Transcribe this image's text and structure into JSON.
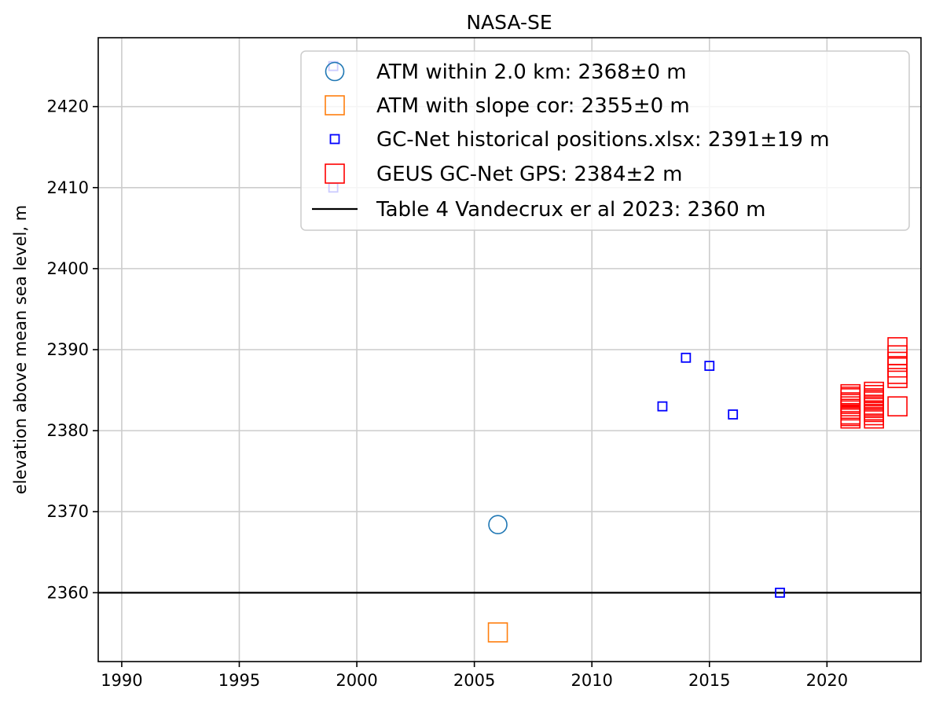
{
  "chart_data": {
    "type": "scatter",
    "title": "NASA-SE",
    "xlabel": "",
    "ylabel": "elevation above mean sea level, m",
    "xlim": [
      1989,
      2024
    ],
    "ylim": [
      2351.5,
      2428.5
    ],
    "xticks": [
      1990,
      1995,
      2000,
      2005,
      2010,
      2015,
      2020
    ],
    "yticks": [
      2360,
      2370,
      2380,
      2390,
      2400,
      2410,
      2420
    ],
    "grid": true,
    "legend_position": "top-right",
    "series": [
      {
        "name": "ATM within 2.0 km: 2368±0 m",
        "marker": "circle-large",
        "color": "#1f77b4",
        "x": [
          2006
        ],
        "y": [
          2368.4
        ]
      },
      {
        "name": "ATM with slope cor: 2355±0 m",
        "marker": "square-large",
        "color": "#ff7f0e",
        "x": [
          2006
        ],
        "y": [
          2355.1
        ]
      },
      {
        "name": "GC-Net historical positions.xlsx: 2391±19 m",
        "marker": "square-small",
        "color": "#0000ff",
        "x": [
          1999,
          1999,
          2013,
          2014,
          2015,
          2016,
          2018
        ],
        "y": [
          2425,
          2410,
          2383,
          2389,
          2388,
          2382,
          2360
        ]
      },
      {
        "name": "GEUS GC-Net GPS: 2384±2 m",
        "marker": "square-large",
        "color": "#ff0000",
        "x": [
          2021,
          2021,
          2021,
          2021,
          2021,
          2021,
          2021,
          2021,
          2021,
          2021,
          2021,
          2022,
          2022,
          2022,
          2022,
          2022,
          2022,
          2022,
          2022,
          2022,
          2022,
          2022,
          2022,
          2023,
          2023,
          2023,
          2023,
          2023,
          2023,
          2023
        ],
        "y": [
          2381.5,
          2382,
          2382.5,
          2383,
          2383.5,
          2384,
          2384.5,
          2381.8,
          2382.7,
          2383.3,
          2384.2,
          2381.5,
          2381.9,
          2382.3,
          2382.8,
          2383.2,
          2383.6,
          2384,
          2384.4,
          2384.8,
          2383,
          2382.5,
          2383.8,
          2390.3,
          2389.3,
          2388.5,
          2387.8,
          2387,
          2386.5,
          2383
        ]
      },
      {
        "name": "Table 4 Vandecrux er al 2023: 2360 m",
        "marker": "line",
        "color": "#000000",
        "y": 2360
      }
    ]
  }
}
